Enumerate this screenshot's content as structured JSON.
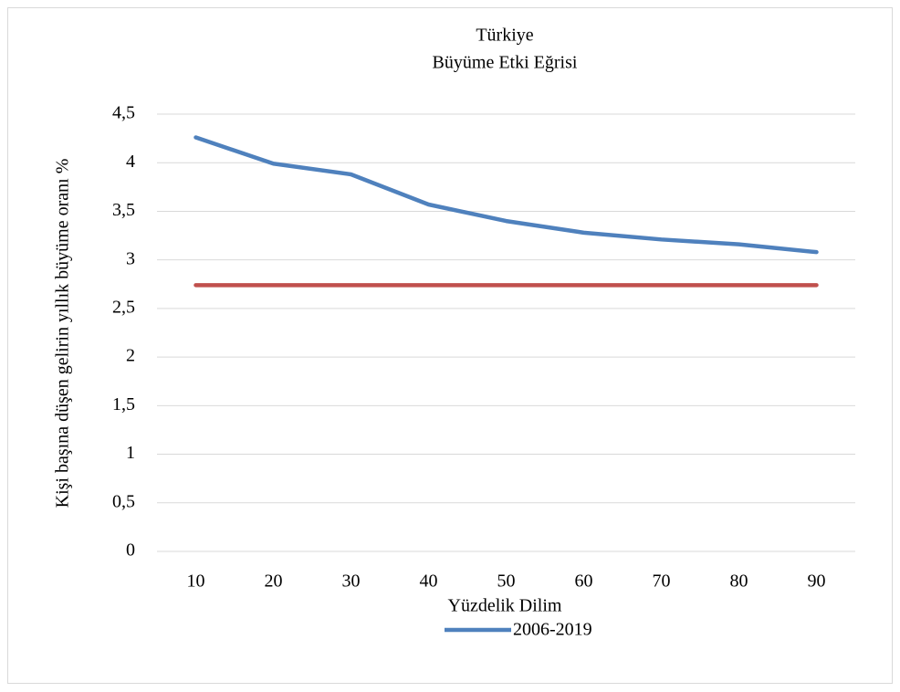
{
  "chart_data": {
    "type": "line",
    "title": "Türkiye",
    "subtitle": "Büyüme Etki Eğrisi",
    "x_label": "Yüzdelik Dilim",
    "y_label": "Kişi başına düşen gelirin yıllık büyüme oranı %",
    "categories": [
      "10",
      "20",
      "30",
      "40",
      "50",
      "60",
      "70",
      "80",
      "90"
    ],
    "series": [
      {
        "name": "2006-2019",
        "color": "#4f81bd",
        "values": [
          4.26,
          3.99,
          3.88,
          3.57,
          3.4,
          3.28,
          3.21,
          3.16,
          3.08
        ]
      },
      {
        "color": "#c0504d",
        "values": [
          2.74,
          2.74,
          2.74,
          2.74,
          2.74,
          2.74,
          2.74,
          2.74,
          2.74
        ]
      }
    ],
    "ylim": [
      0,
      4.5
    ],
    "yticks": [
      0,
      {
        "value": 0.5,
        "label": "0,5"
      },
      1,
      {
        "value": 1.5,
        "label": "1,5"
      },
      2,
      {
        "value": 2.5,
        "label": "2,5"
      },
      3,
      {
        "value": 3.5,
        "label": "3,5"
      },
      4,
      {
        "value": 4.5,
        "label": "4,5"
      }
    ],
    "grid": true,
    "legend": "bottom"
  }
}
